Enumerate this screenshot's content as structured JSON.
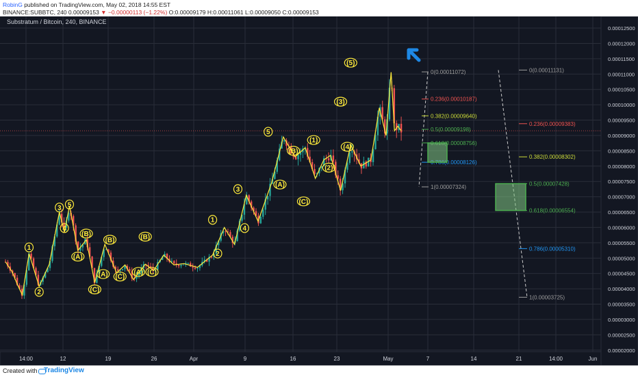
{
  "header": {
    "author": "RobinG",
    "published": " published on TradingView.com, May 02, 2018 14:55 EST",
    "ticker_line_prefix": "BINANCE:SUBBTC, 240  0.00009153 ",
    "change": "▼ −0.00000113 (−1.22%)",
    "ohlc": " O:0.00009179 H:0.00011061 L:0.00009050 C:0.00009153"
  },
  "footer": {
    "created_with": "Created with",
    "brand": "TradingView"
  },
  "colors": {
    "background": "#131722",
    "grid": "#2a2e39",
    "wave": "#ffeb3b",
    "candle_up": "#26a69a",
    "candle_down": "#ef5350",
    "fib_grey": "#9e9e9e",
    "fib_red": "#ef5350",
    "fib_yellow": "#cddc39",
    "fib_green": "#4caf50",
    "fib_blue": "#2196f3",
    "box_fill": "#81c784",
    "arrow": "#1e88e5"
  },
  "chart_data": {
    "type": "candlestick",
    "title": "Substratum / Bitcoin, 240, BINANCE",
    "ylim": [
      1.95e-05,
      0.0001288
    ],
    "y_ticks": [
      "0.00012500",
      "0.00012000",
      "0.00011500",
      "0.00011000",
      "0.00010500",
      "0.00010000",
      "0.00009500",
      "0.00009000",
      "0.00008500",
      "0.00008000",
      "0.00007500",
      "0.00007000",
      "0.00006500",
      "0.00006000",
      "0.00005500",
      "0.00005000",
      "0.00004500",
      "0.00004000",
      "0.00003500",
      "0.00003000",
      "0.00002500",
      "0.00002000"
    ],
    "x_ticks": [
      "14:00",
      "12",
      "19",
      "26",
      "Apr",
      "9",
      "16",
      "23",
      "May",
      "7",
      "14",
      "21",
      "14:00",
      "Jun"
    ],
    "last_price": 9.153e-05,
    "price_path": [
      [
        0,
        4.88e-05
      ],
      [
        0.4,
        4.55e-05
      ],
      [
        0.7,
        4.15e-05
      ],
      [
        1.0,
        3.8e-05
      ],
      [
        1.4,
        5.15e-05
      ],
      [
        2.0,
        4.08e-05
      ],
      [
        2.6,
        4.8e-05
      ],
      [
        3.2,
        6.5e-05
      ],
      [
        3.5,
        5.85e-05
      ],
      [
        3.8,
        6.7e-05
      ],
      [
        4.3,
        5.25e-05
      ],
      [
        4.8,
        5.6e-05
      ],
      [
        5.3,
        4.2e-05
      ],
      [
        5.9,
        5.45e-05
      ],
      [
        6.6,
        4.52e-05
      ],
      [
        7.1,
        4.78e-05
      ],
      [
        7.6,
        4.3e-05
      ],
      [
        8.3,
        4.8e-05
      ],
      [
        8.8,
        4.6e-05
      ],
      [
        9.4,
        5.1e-05
      ],
      [
        10.0,
        4.78e-05
      ],
      [
        10.6,
        4.82e-05
      ],
      [
        11.4,
        4.7e-05
      ],
      [
        12.3,
        5.1e-05
      ],
      [
        13.0,
        6e-05
      ],
      [
        13.6,
        5.45e-05
      ],
      [
        14.3,
        7.05e-05
      ],
      [
        15.0,
        6.2e-05
      ],
      [
        15.8,
        7.45e-05
      ],
      [
        16.5,
        8.95e-05
      ],
      [
        17.2,
        8.3e-05
      ],
      [
        17.8,
        8.6e-05
      ],
      [
        18.4,
        7.6e-05
      ],
      [
        18.9,
        8.2e-05
      ],
      [
        19.3,
        8.35e-05
      ],
      [
        19.9,
        7.2e-05
      ],
      [
        20.5,
        8.7e-05
      ],
      [
        21.1,
        8e-05
      ],
      [
        21.7,
        8.2e-05
      ],
      [
        22.2,
        9.9e-05
      ],
      [
        22.6,
        9e-05
      ],
      [
        22.9,
        0.0001106
      ],
      [
        23.1,
        9.15e-05
      ],
      [
        23.3,
        9.3e-05
      ],
      [
        23.5,
        9.15e-05
      ]
    ],
    "wave_labels": [
      {
        "label": "1",
        "date_idx": 1.4,
        "price": 5.35e-05
      },
      {
        "label": "2",
        "date_idx": 2.0,
        "price": 3.9e-05
      },
      {
        "label": "3",
        "date_idx": 3.2,
        "price": 6.65e-05
      },
      {
        "label": "5",
        "date_idx": 3.8,
        "price": 6.75e-05
      },
      {
        "label": "4",
        "date_idx": 3.5,
        "price": 5.98e-05
      },
      {
        "label": "(A)",
        "date_idx": 4.3,
        "price": 5.05e-05
      },
      {
        "label": "(B)",
        "date_idx": 4.8,
        "price": 5.8e-05
      },
      {
        "label": "(C)",
        "date_idx": 5.3,
        "price": 3.98e-05
      },
      {
        "label": "(A)",
        "date_idx": 5.8,
        "price": 4.48e-05
      },
      {
        "label": "(B)",
        "date_idx": 6.2,
        "price": 5.6e-05
      },
      {
        "label": "(C)",
        "date_idx": 6.8,
        "price": 4.4e-05
      },
      {
        "label": "(A)",
        "date_idx": 7.9,
        "price": 4.55e-05
      },
      {
        "label": "(B)",
        "date_idx": 8.3,
        "price": 5.7e-05
      },
      {
        "label": "(C)",
        "date_idx": 8.7,
        "price": 4.55e-05
      },
      {
        "label": "1",
        "date_idx": 12.3,
        "price": 6.25e-05
      },
      {
        "label": "2",
        "date_idx": 12.6,
        "price": 5.15e-05
      },
      {
        "label": "3",
        "date_idx": 13.8,
        "price": 7.25e-05
      },
      {
        "label": "4",
        "date_idx": 14.2,
        "price": 5.98e-05
      },
      {
        "label": "5",
        "date_idx": 15.6,
        "price": 9.12e-05
      },
      {
        "label": "(A)",
        "date_idx": 16.3,
        "price": 7.4e-05
      },
      {
        "label": "(B)",
        "date_idx": 17.1,
        "price": 8.5e-05
      },
      {
        "label": "(C)",
        "date_idx": 17.7,
        "price": 6.85e-05
      },
      {
        "label": "(1)",
        "date_idx": 18.3,
        "price": 8.85e-05
      },
      {
        "label": "(2)",
        "date_idx": 19.2,
        "price": 7.95e-05
      },
      {
        "label": "(3)",
        "date_idx": 19.9,
        "price": 0.000101
      },
      {
        "label": "(4)",
        "date_idx": 20.3,
        "price": 8.63e-05
      },
      {
        "label": "(5)",
        "date_idx": 20.5,
        "price": 0.0001137
      }
    ],
    "fib_left": [
      {
        "label": "0(0.00011072)",
        "price": 0.00011072,
        "color": "fib_grey"
      },
      {
        "label": "0.236(0.00010187)",
        "price": 0.00010187,
        "color": "fib_red"
      },
      {
        "label": "0.382(0.00009640)",
        "price": 9.64e-05,
        "color": "fib_yellow"
      },
      {
        "label": "0.5(0.00009198)",
        "price": 9.198e-05,
        "color": "fib_green"
      },
      {
        "label": "0.618(0.00008756)",
        "price": 8.756e-05,
        "color": "fib_green"
      },
      {
        "label": "0.786(0.00008126)",
        "price": 8.126e-05,
        "color": "fib_blue"
      },
      {
        "label": "1(0.00007324)",
        "price": 7.324e-05,
        "color": "fib_grey"
      }
    ],
    "fib_right": [
      {
        "label": "0(0.00011131)",
        "price": 0.00011131,
        "color": "fib_grey"
      },
      {
        "label": "0.236(0.00009383)",
        "price": 9.383e-05,
        "color": "fib_red"
      },
      {
        "label": "0.382(0.00008302)",
        "price": 8.302e-05,
        "color": "fib_yellow"
      },
      {
        "label": "0.5(0.00007428)",
        "price": 7.428e-05,
        "color": "fib_green"
      },
      {
        "label": "0.618(0.00006554)",
        "price": 6.554e-05,
        "color": "fib_green"
      },
      {
        "label": "0.786(0.00005310)",
        "price": 5.31e-05,
        "color": "fib_blue"
      },
      {
        "label": "1(0.00003725)",
        "price": 3.725e-05,
        "color": "fib_grey"
      }
    ]
  }
}
